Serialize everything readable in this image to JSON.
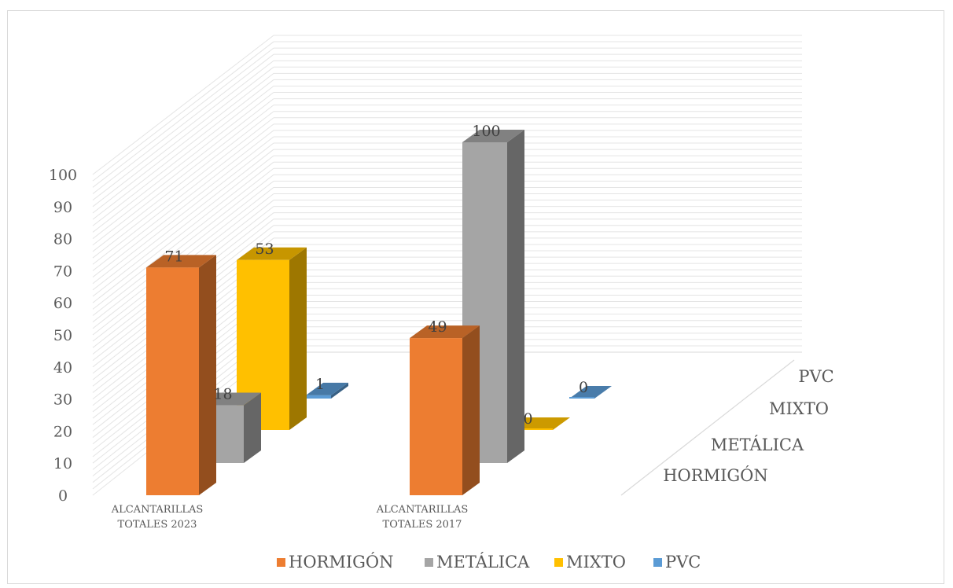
{
  "chart_data": {
    "type": "bar",
    "categories": [
      "ALCANTARILLAS TOTALES 2023",
      "ALCANTARILLAS TOTALES 2017"
    ],
    "series": [
      {
        "name": "HORMIGÓN",
        "values": [
          71,
          49
        ],
        "color": "#ed7d31"
      },
      {
        "name": "METÁLICA",
        "values": [
          18,
          100
        ],
        "color": "#a5a5a5"
      },
      {
        "name": "MIXTO",
        "values": [
          53,
          0
        ],
        "color": "#ffc000"
      },
      {
        "name": "PVC",
        "values": [
          1,
          0
        ],
        "color": "#5b9bd5"
      }
    ],
    "yticks": [
      "0",
      "10",
      "20",
      "30",
      "40",
      "50",
      "60",
      "70",
      "80",
      "90",
      "100"
    ],
    "ylim": [
      0,
      100
    ],
    "grid": true,
    "three_d": true,
    "legend_position": "bottom"
  }
}
